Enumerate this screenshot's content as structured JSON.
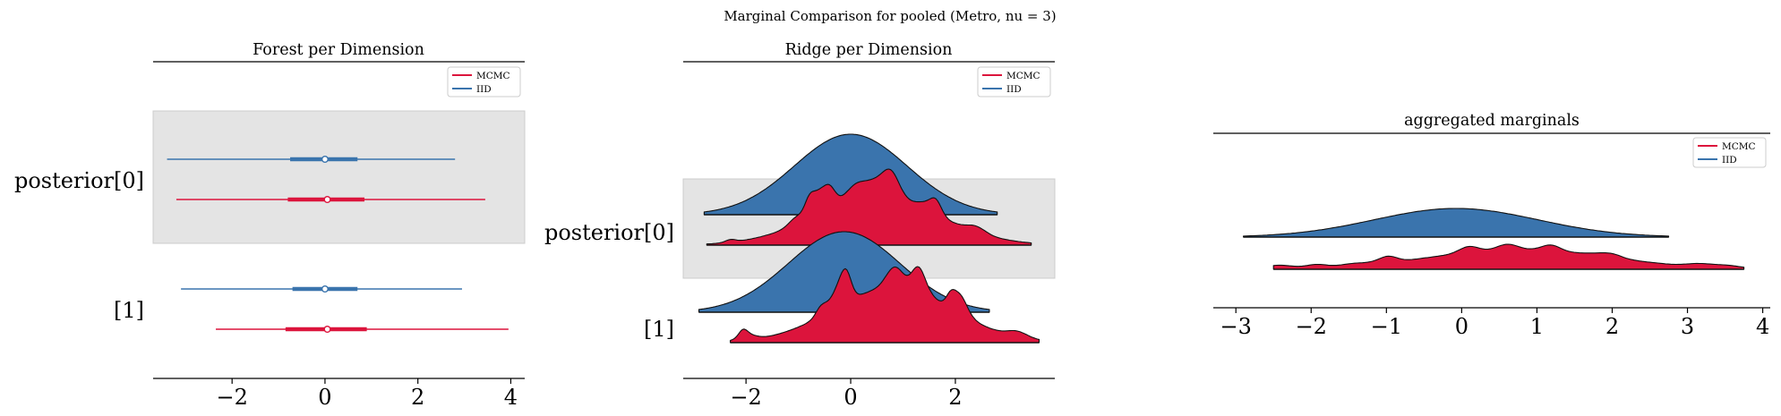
{
  "suptitle": "Marginal Comparison for pooled (Metro, nu = 3)",
  "colors": {
    "mcmc": "#dc143c",
    "iid": "#3a74ad",
    "band": "#e4e4e4",
    "axis": "#000000"
  },
  "legend": {
    "mcmc": "MCMC",
    "iid": "IID"
  },
  "chart_data": [
    {
      "type": "forest",
      "title": "Forest per Dimension",
      "ytick_labels": [
        "posterior[0]",
        "[1]"
      ],
      "xlim": [
        -3.7,
        4.3
      ],
      "xticks": [
        -2,
        0,
        2,
        4
      ],
      "xtick_labels": [
        "−2",
        "0",
        "2",
        "4"
      ],
      "legend_loc": "upper right",
      "rows": [
        {
          "label": "posterior[0]",
          "shaded": true,
          "series": [
            {
              "name": "IID",
              "hdi": [
                -3.4,
                2.8
              ],
              "iqr": [
                -0.75,
                0.7
              ],
              "median": 0.0
            },
            {
              "name": "MCMC",
              "hdi": [
                -3.2,
                3.45
              ],
              "iqr": [
                -0.8,
                0.85
              ],
              "median": 0.05
            }
          ]
        },
        {
          "label": "[1]",
          "shaded": false,
          "series": [
            {
              "name": "IID",
              "hdi": [
                -3.1,
                2.95
              ],
              "iqr": [
                -0.7,
                0.7
              ],
              "median": 0.0
            },
            {
              "name": "MCMC",
              "hdi": [
                -2.35,
                3.95
              ],
              "iqr": [
                -0.85,
                0.9
              ],
              "median": 0.05
            }
          ]
        }
      ]
    },
    {
      "type": "ridge",
      "title": "Ridge per Dimension",
      "ytick_labels": [
        "posterior[0]",
        "[1]"
      ],
      "xlim": [
        -3.2,
        3.9
      ],
      "xticks": [
        -2,
        0,
        2
      ],
      "xtick_labels": [
        "−2",
        "0",
        "2"
      ],
      "legend_loc": "upper right",
      "rows": [
        {
          "label": "posterior[0]",
          "shaded": true,
          "series": [
            {
              "name": "IID",
              "range": [
                -2.8,
                2.8
              ],
              "shape": "smooth",
              "seed": 1
            },
            {
              "name": "MCMC",
              "range": [
                -2.75,
                3.45
              ],
              "shape": "rough",
              "seed": 2
            }
          ]
        },
        {
          "label": "[1]",
          "shaded": false,
          "series": [
            {
              "name": "IID",
              "range": [
                -2.9,
                2.65
              ],
              "shape": "smooth",
              "seed": 3
            },
            {
              "name": "MCMC",
              "range": [
                -2.3,
                3.6
              ],
              "shape": "rough",
              "seed": 4
            }
          ]
        }
      ]
    },
    {
      "type": "ridge",
      "title": "aggregated marginals",
      "xlim": [
        -3.3,
        4.1
      ],
      "xticks": [
        -3,
        -2,
        -1,
        0,
        1,
        2,
        3,
        4
      ],
      "xtick_labels": [
        "−3",
        "−2",
        "−1",
        "0",
        "1",
        "2",
        "3",
        "4"
      ],
      "legend_loc": "upper right",
      "series": [
        {
          "name": "IID",
          "range": [
            -2.9,
            2.75
          ],
          "shape": "smooth",
          "seed": 5
        },
        {
          "name": "MCMC",
          "range": [
            -2.5,
            3.75
          ],
          "shape": "rough",
          "seed": 6
        }
      ]
    }
  ]
}
